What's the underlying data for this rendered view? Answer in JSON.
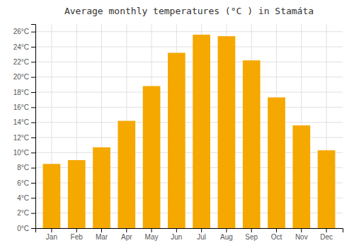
{
  "chart_data": {
    "type": "bar",
    "title": "Average monthly temperatures (°C ) in Stamáta",
    "categories": [
      "Jan",
      "Feb",
      "Mar",
      "Apr",
      "May",
      "Jun",
      "Jul",
      "Aug",
      "Sep",
      "Oct",
      "Nov",
      "Dec"
    ],
    "values": [
      8.5,
      9.0,
      10.7,
      14.2,
      18.8,
      23.2,
      25.6,
      25.4,
      22.2,
      17.3,
      13.6,
      10.3
    ],
    "color": "#F5A800",
    "ylim": [
      0,
      27
    ],
    "yticks": [
      {
        "value": 0,
        "label": "0°C"
      },
      {
        "value": 2,
        "label": "2°C"
      },
      {
        "value": 4,
        "label": "4°C"
      },
      {
        "value": 6,
        "label": "6°C"
      },
      {
        "value": 8,
        "label": "8°C"
      },
      {
        "value": 10,
        "label": "10°C"
      },
      {
        "value": 12,
        "label": "12°C"
      },
      {
        "value": 14,
        "label": "14°C"
      },
      {
        "value": 16,
        "label": "16°C"
      },
      {
        "value": 18,
        "label": "18°C"
      },
      {
        "value": 20,
        "label": "20°C"
      },
      {
        "value": 22,
        "label": "22°C"
      },
      {
        "value": 24,
        "label": "24°C"
      },
      {
        "value": 26,
        "label": "26°C"
      }
    ],
    "grid": true
  }
}
